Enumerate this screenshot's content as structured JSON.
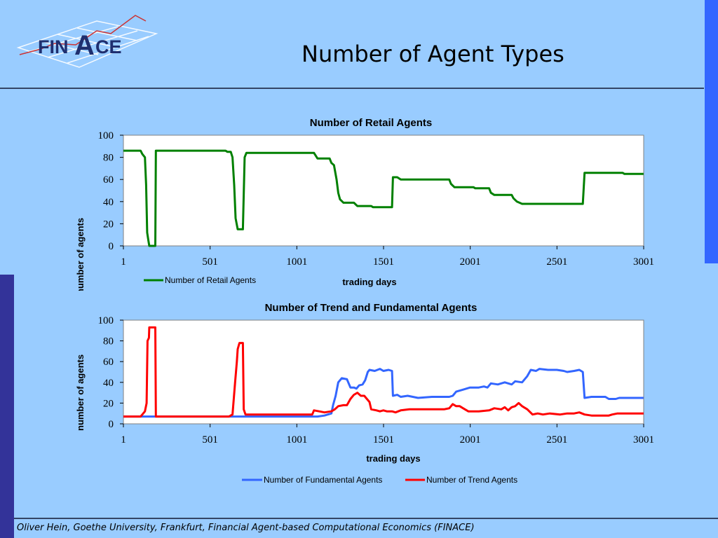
{
  "slide": {
    "title": "Number of Agent Types",
    "footer": "Oliver Hein, Goethe University, Frankfurt, Financial Agent-based Computational Economics (FINACE)",
    "logo": {
      "prefix": "FIN",
      "big_letter": "A",
      "suffix": "CE"
    }
  },
  "colors": {
    "background": "#99ccff",
    "retail": "#008000",
    "fundamental": "#3366ff",
    "trend": "#ff0000",
    "plot_area": "#ffffff"
  },
  "chart_data": [
    {
      "type": "line",
      "title": "Number of Retail Agents",
      "xlabel": "trading days",
      "ylabel": "number of agents",
      "xlim": [
        1,
        3001
      ],
      "ylim": [
        0,
        100
      ],
      "xticks": [
        "1",
        "501",
        "1001",
        "1501",
        "2001",
        "2501",
        "3001"
      ],
      "yticks": [
        "0",
        "20",
        "40",
        "60",
        "80",
        "100"
      ],
      "grid": false,
      "legend": "bottom-left",
      "series": [
        {
          "name": "Number of Retail Agents",
          "color": "#008000",
          "points": [
            [
              1,
              86
            ],
            [
              100,
              86
            ],
            [
              110,
              83
            ],
            [
              125,
              80
            ],
            [
              132,
              55
            ],
            [
              138,
              12
            ],
            [
              145,
              5
            ],
            [
              150,
              0
            ],
            [
              185,
              0
            ],
            [
              188,
              86
            ],
            [
              590,
              86
            ],
            [
              600,
              85
            ],
            [
              620,
              85
            ],
            [
              630,
              80
            ],
            [
              640,
              55
            ],
            [
              648,
              25
            ],
            [
              660,
              15
            ],
            [
              690,
              15
            ],
            [
              700,
              80
            ],
            [
              710,
              84
            ],
            [
              1100,
              84
            ],
            [
              1120,
              79
            ],
            [
              1190,
              79
            ],
            [
              1200,
              75
            ],
            [
              1215,
              73
            ],
            [
              1230,
              60
            ],
            [
              1240,
              48
            ],
            [
              1250,
              42
            ],
            [
              1270,
              39
            ],
            [
              1330,
              39
            ],
            [
              1350,
              36
            ],
            [
              1430,
              36
            ],
            [
              1440,
              35
            ],
            [
              1550,
              35
            ],
            [
              1555,
              62
            ],
            [
              1580,
              62
            ],
            [
              1600,
              60
            ],
            [
              1880,
              60
            ],
            [
              1890,
              56
            ],
            [
              1910,
              53
            ],
            [
              2020,
              53
            ],
            [
              2030,
              52
            ],
            [
              2110,
              52
            ],
            [
              2120,
              48
            ],
            [
              2140,
              46
            ],
            [
              2240,
              46
            ],
            [
              2250,
              43
            ],
            [
              2270,
              40
            ],
            [
              2300,
              38
            ],
            [
              2650,
              38
            ],
            [
              2660,
              66
            ],
            [
              2880,
              66
            ],
            [
              2890,
              65
            ],
            [
              3000,
              65
            ]
          ]
        }
      ]
    },
    {
      "type": "line",
      "title": "Number of Trend and Fundamental Agents",
      "xlabel": "trading days",
      "ylabel": "number of agents",
      "xlim": [
        1,
        3001
      ],
      "ylim": [
        0,
        100
      ],
      "xticks": [
        "1",
        "501",
        "1001",
        "1501",
        "2001",
        "2501",
        "3001"
      ],
      "yticks": [
        "0",
        "20",
        "40",
        "60",
        "80",
        "100"
      ],
      "grid": false,
      "legend": "bottom-center",
      "series": [
        {
          "name": "Number of Fundamental Agents",
          "color": "#3366ff",
          "points": [
            [
              1,
              7
            ],
            [
              1100,
              7
            ],
            [
              1120,
              7
            ],
            [
              1160,
              8
            ],
            [
              1200,
              10
            ],
            [
              1210,
              18
            ],
            [
              1225,
              27
            ],
            [
              1240,
              40
            ],
            [
              1260,
              44
            ],
            [
              1290,
              43
            ],
            [
              1310,
              35
            ],
            [
              1330,
              35
            ],
            [
              1345,
              34
            ],
            [
              1360,
              37
            ],
            [
              1380,
              38
            ],
            [
              1395,
              42
            ],
            [
              1410,
              50
            ],
            [
              1420,
              52
            ],
            [
              1450,
              51
            ],
            [
              1480,
              53
            ],
            [
              1500,
              51
            ],
            [
              1530,
              52
            ],
            [
              1550,
              51
            ],
            [
              1555,
              27
            ],
            [
              1580,
              28
            ],
            [
              1600,
              26
            ],
            [
              1640,
              27
            ],
            [
              1700,
              25
            ],
            [
              1780,
              26
            ],
            [
              1880,
              26
            ],
            [
              1900,
              27
            ],
            [
              1920,
              31
            ],
            [
              1960,
              33
            ],
            [
              2000,
              35
            ],
            [
              2050,
              35
            ],
            [
              2080,
              36
            ],
            [
              2100,
              35
            ],
            [
              2120,
              39
            ],
            [
              2160,
              38
            ],
            [
              2200,
              40
            ],
            [
              2240,
              38
            ],
            [
              2260,
              41
            ],
            [
              2300,
              40
            ],
            [
              2330,
              46
            ],
            [
              2350,
              52
            ],
            [
              2380,
              51
            ],
            [
              2400,
              53
            ],
            [
              2450,
              52
            ],
            [
              2500,
              52
            ],
            [
              2540,
              51
            ],
            [
              2560,
              50
            ],
            [
              2600,
              51
            ],
            [
              2630,
              52
            ],
            [
              2650,
              50
            ],
            [
              2660,
              25
            ],
            [
              2700,
              26
            ],
            [
              2780,
              26
            ],
            [
              2800,
              24
            ],
            [
              2840,
              24
            ],
            [
              2860,
              25
            ],
            [
              3000,
              25
            ]
          ]
        },
        {
          "name": "Number of Trend Agents",
          "color": "#ff0000",
          "points": [
            [
              1,
              7
            ],
            [
              100,
              7
            ],
            [
              110,
              9
            ],
            [
              125,
              12
            ],
            [
              135,
              20
            ],
            [
              140,
              80
            ],
            [
              148,
              83
            ],
            [
              150,
              93
            ],
            [
              185,
              93
            ],
            [
              188,
              7
            ],
            [
              590,
              7
            ],
            [
              610,
              7
            ],
            [
              630,
              9
            ],
            [
              645,
              40
            ],
            [
              655,
              60
            ],
            [
              660,
              72
            ],
            [
              670,
              78
            ],
            [
              690,
              78
            ],
            [
              695,
              14
            ],
            [
              705,
              9
            ],
            [
              1090,
              9
            ],
            [
              1100,
              13
            ],
            [
              1130,
              12
            ],
            [
              1160,
              11
            ],
            [
              1200,
              12
            ],
            [
              1220,
              14
            ],
            [
              1240,
              17
            ],
            [
              1270,
              18
            ],
            [
              1290,
              18
            ],
            [
              1310,
              24
            ],
            [
              1330,
              28
            ],
            [
              1350,
              30
            ],
            [
              1370,
              27
            ],
            [
              1390,
              27
            ],
            [
              1400,
              25
            ],
            [
              1420,
              21
            ],
            [
              1430,
              14
            ],
            [
              1460,
              13
            ],
            [
              1480,
              12
            ],
            [
              1500,
              13
            ],
            [
              1520,
              12
            ],
            [
              1550,
              12
            ],
            [
              1570,
              11
            ],
            [
              1600,
              13
            ],
            [
              1650,
              14
            ],
            [
              1750,
              14
            ],
            [
              1850,
              14
            ],
            [
              1880,
              15
            ],
            [
              1900,
              19
            ],
            [
              1920,
              17
            ],
            [
              1940,
              17
            ],
            [
              1960,
              15
            ],
            [
              1990,
              12
            ],
            [
              2050,
              12
            ],
            [
              2110,
              13
            ],
            [
              2140,
              15
            ],
            [
              2180,
              14
            ],
            [
              2200,
              16
            ],
            [
              2220,
              13
            ],
            [
              2240,
              16
            ],
            [
              2260,
              17
            ],
            [
              2280,
              20
            ],
            [
              2300,
              17
            ],
            [
              2330,
              14
            ],
            [
              2360,
              9
            ],
            [
              2390,
              10
            ],
            [
              2420,
              9
            ],
            [
              2460,
              10
            ],
            [
              2520,
              9
            ],
            [
              2560,
              10
            ],
            [
              2600,
              10
            ],
            [
              2630,
              11
            ],
            [
              2660,
              9
            ],
            [
              2700,
              8
            ],
            [
              2800,
              8
            ],
            [
              2820,
              9
            ],
            [
              2850,
              10
            ],
            [
              3000,
              10
            ]
          ]
        }
      ]
    }
  ]
}
